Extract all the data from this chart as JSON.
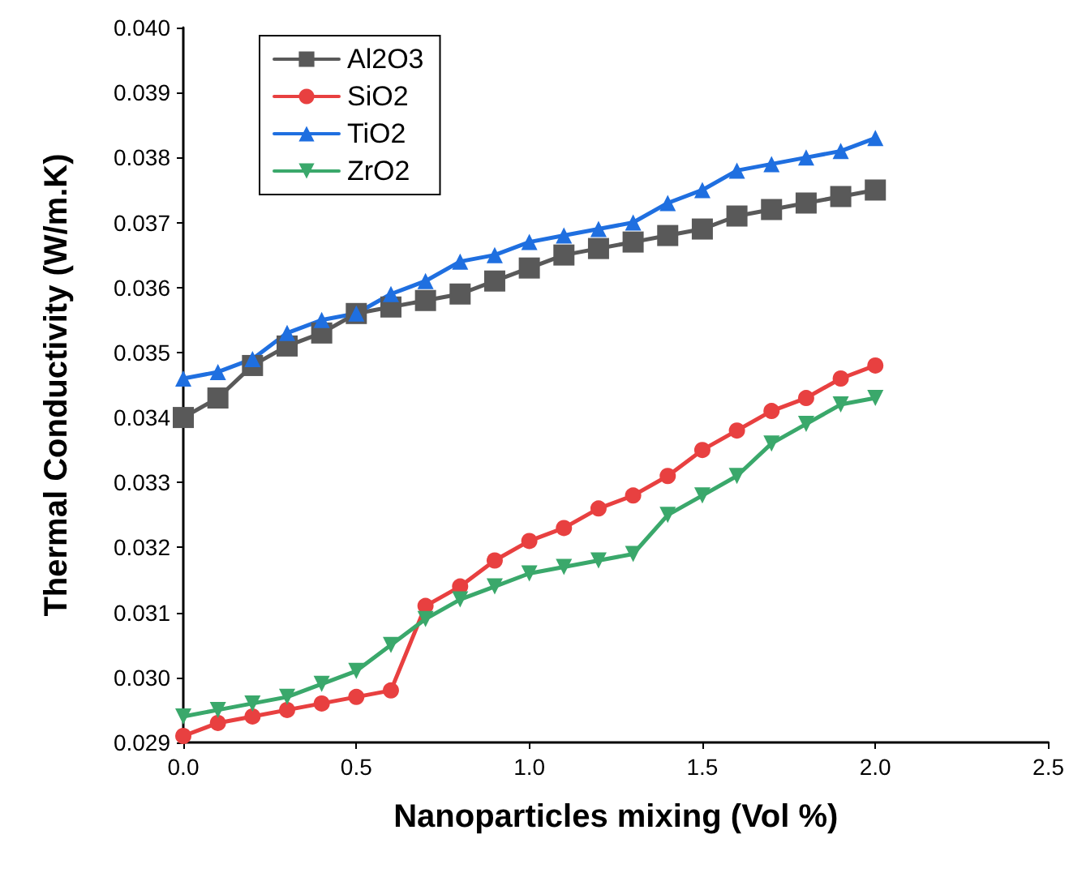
{
  "chart_data": {
    "type": "line",
    "xlabel": "Nanoparticles mixing (Vol %)",
    "ylabel": "Thermal Conductivity (W/m.K)",
    "x": [
      0,
      0.1,
      0.2,
      0.3,
      0.4,
      0.5,
      0.6,
      0.7,
      0.8,
      0.9,
      1.0,
      1.1,
      1.2,
      1.3,
      1.4,
      1.5,
      1.6,
      1.7,
      1.8,
      1.9,
      2.0
    ],
    "series": [
      {
        "name": "Al2O3",
        "color": "#595959",
        "marker": "square",
        "values": [
          0.034,
          0.0343,
          0.0348,
          0.0351,
          0.0353,
          0.0356,
          0.0357,
          0.0358,
          0.0359,
          0.0361,
          0.0363,
          0.0365,
          0.0366,
          0.0367,
          0.0368,
          0.0369,
          0.0371,
          0.0372,
          0.0373,
          0.0374,
          0.0375
        ]
      },
      {
        "name": "SiO2",
        "color": "#e84040",
        "marker": "circle",
        "values": [
          0.0291,
          0.0293,
          0.0294,
          0.0295,
          0.0296,
          0.0297,
          0.0298,
          0.0311,
          0.0314,
          0.0318,
          0.0321,
          0.0323,
          0.0326,
          0.0328,
          0.0331,
          0.0335,
          0.0338,
          0.0341,
          0.0343,
          0.0346,
          0.0348
        ]
      },
      {
        "name": "TiO2",
        "color": "#1f6fe0",
        "marker": "triangle",
        "values": [
          0.0346,
          0.0347,
          0.0349,
          0.0353,
          0.0355,
          0.0356,
          0.0359,
          0.0361,
          0.0364,
          0.0365,
          0.0367,
          0.0368,
          0.0369,
          0.037,
          0.0373,
          0.0375,
          0.0378,
          0.0379,
          0.038,
          0.0381,
          0.0383
        ]
      },
      {
        "name": "ZrO2",
        "color": "#3aa86b",
        "marker": "triangle-down",
        "values": [
          0.0294,
          0.0295,
          0.0296,
          0.0297,
          0.0299,
          0.0301,
          0.0305,
          0.0309,
          0.0312,
          0.0314,
          0.0316,
          0.0317,
          0.0318,
          0.0319,
          0.0325,
          0.0328,
          0.0331,
          0.0336,
          0.0339,
          0.0342,
          0.0343
        ]
      }
    ],
    "xlim": [
      0,
      2.5
    ],
    "xticks": [
      {
        "value": 0,
        "label": "0.0"
      },
      {
        "value": 0.5,
        "label": "0.5"
      },
      {
        "value": 1,
        "label": "1.0"
      },
      {
        "value": 1.5,
        "label": "1.5"
      },
      {
        "value": 2,
        "label": "2.0"
      },
      {
        "value": 2.5,
        "label": "2.5"
      }
    ],
    "ylim": [
      0.029,
      0.04
    ],
    "yticks": [
      {
        "value": 0.029,
        "label": "0.029"
      },
      {
        "value": 0.03,
        "label": "0.030"
      },
      {
        "value": 0.031,
        "label": "0.031"
      },
      {
        "value": 0.032,
        "label": "0.032"
      },
      {
        "value": 0.033,
        "label": "0.033"
      },
      {
        "value": 0.034,
        "label": "0.034"
      },
      {
        "value": 0.035,
        "label": "0.035"
      },
      {
        "value": 0.036,
        "label": "0.036"
      },
      {
        "value": 0.037,
        "label": "0.037"
      },
      {
        "value": 0.038,
        "label": "0.038"
      },
      {
        "value": 0.039,
        "label": "0.039"
      },
      {
        "value": 0.04,
        "label": "0.040"
      }
    ],
    "grid": false,
    "legend": "top left",
    "line_style": "solid"
  }
}
